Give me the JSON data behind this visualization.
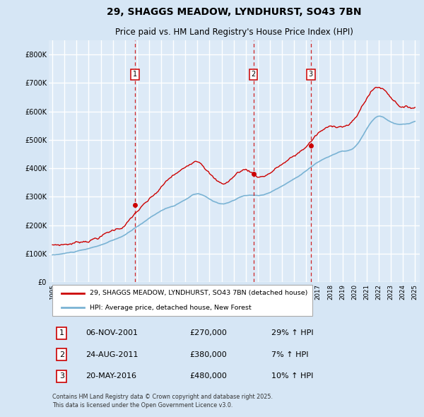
{
  "title": "29, SHAGGS MEADOW, LYNDHURST, SO43 7BN",
  "subtitle": "Price paid vs. HM Land Registry's House Price Index (HPI)",
  "background_color": "#d6e6f5",
  "plot_bg_color": "#ddeaf7",
  "grid_color": "#ffffff",
  "hpi_color": "#7ab3d4",
  "price_color": "#cc0000",
  "ylim": [
    0,
    850000
  ],
  "yticks": [
    0,
    100000,
    200000,
    300000,
    400000,
    500000,
    600000,
    700000,
    800000
  ],
  "ytick_labels": [
    "£0",
    "£100K",
    "£200K",
    "£300K",
    "£400K",
    "£500K",
    "£600K",
    "£700K",
    "£800K"
  ],
  "sale_dates": [
    2001.85,
    2011.63,
    2016.38
  ],
  "sale_prices": [
    270000,
    380000,
    480000
  ],
  "sale_labels": [
    "1",
    "2",
    "3"
  ],
  "sale_table": [
    [
      "1",
      "06-NOV-2001",
      "£270,000",
      "29% ↑ HPI"
    ],
    [
      "2",
      "24-AUG-2011",
      "£380,000",
      "7% ↑ HPI"
    ],
    [
      "3",
      "20-MAY-2016",
      "£480,000",
      "10% ↑ HPI"
    ]
  ],
  "legend_line1": "29, SHAGGS MEADOW, LYNDHURST, SO43 7BN (detached house)",
  "legend_line2": "HPI: Average price, detached house, New Forest",
  "footer": "Contains HM Land Registry data © Crown copyright and database right 2025.\nThis data is licensed under the Open Government Licence v3.0."
}
